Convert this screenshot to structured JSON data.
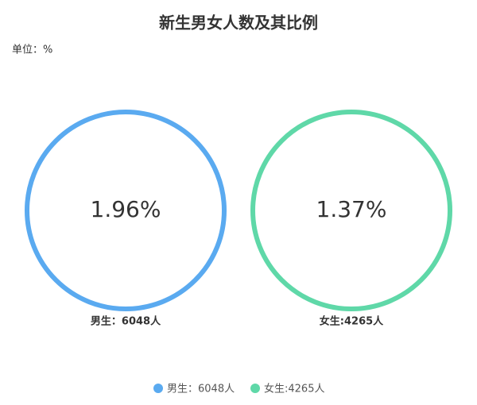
{
  "chart_data": {
    "type": "ring",
    "title": "新生男女人数及其比例",
    "unit": "单位：%",
    "categories": [
      "男生：6048人",
      "女生:4265人"
    ],
    "values": [
      1.96,
      1.37
    ],
    "value_labels": [
      "1.96%",
      "1.37%"
    ],
    "colors": [
      "#5aaaf0",
      "#5fd8a8"
    ]
  }
}
